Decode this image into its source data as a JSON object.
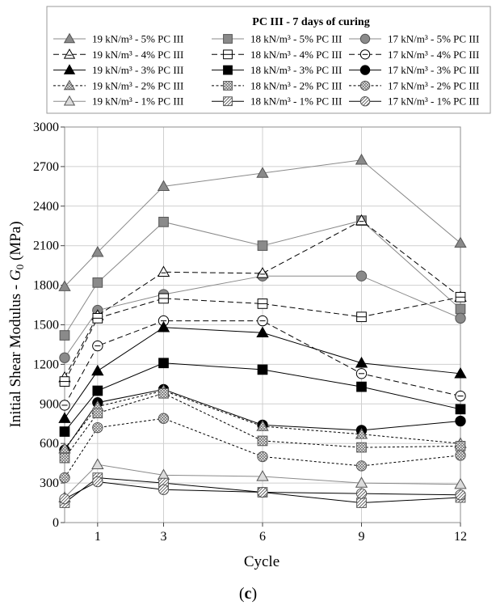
{
  "chart_data": {
    "type": "line",
    "title": "PC III - 7 days of curing",
    "xlabel": "Cycle",
    "ylabel_main": "Initial Shear Modulus - ",
    "ylabel_g": "G",
    "ylabel_sub": "0",
    "ylabel_unit": " (MPa)",
    "x": [
      0,
      1,
      3,
      6,
      9,
      12
    ],
    "xticks": [
      1,
      3,
      6,
      9,
      12
    ],
    "xtick_labels": [
      "1",
      "3",
      "6",
      "9",
      "12"
    ],
    "yticks": [
      0,
      300,
      600,
      900,
      1200,
      1500,
      1800,
      2100,
      2400,
      2700,
      3000
    ],
    "ytick_labels": [
      "0",
      "300",
      "600",
      "900",
      "1200",
      "1500",
      "1800",
      "2100",
      "2400",
      "2700",
      "3000"
    ],
    "xlim": [
      0,
      12
    ],
    "ylim": [
      0,
      3000
    ],
    "grid": true,
    "caption_open": "(",
    "caption_letter": "c",
    "caption_close": ")",
    "series": [
      {
        "name": "19 kN/m³ - 5% PC III",
        "marker": "triangle",
        "style": "gray",
        "dash": "solid",
        "values": [
          1790,
          2050,
          2550,
          2650,
          2750,
          2120
        ]
      },
      {
        "name": "18 kN/m³ - 5% PC III",
        "marker": "square",
        "style": "gray",
        "dash": "solid",
        "values": [
          1420,
          1820,
          2280,
          2100,
          2290,
          1620
        ]
      },
      {
        "name": "17 kN/m³ - 5% PC III",
        "marker": "circle",
        "style": "gray",
        "dash": "solid",
        "values": [
          1250,
          1610,
          1730,
          1870,
          1870,
          1550
        ]
      },
      {
        "name": "19 kN/m³ - 4% PC III",
        "marker": "triangle",
        "style": "white",
        "dash": "longdash",
        "values": [
          1100,
          1570,
          1900,
          1890,
          2290,
          1710
        ]
      },
      {
        "name": "18 kN/m³ - 4% PC III",
        "marker": "square",
        "style": "white",
        "dash": "longdash",
        "values": [
          1070,
          1550,
          1700,
          1660,
          1560,
          1710
        ]
      },
      {
        "name": "17 kN/m³ - 4% PC III",
        "marker": "circle",
        "style": "white",
        "dash": "longdash",
        "values": [
          890,
          1340,
          1530,
          1530,
          1130,
          960
        ]
      },
      {
        "name": "19 kN/m³ - 3% PC III",
        "marker": "triangle",
        "style": "black",
        "dash": "solid",
        "values": [
          790,
          1150,
          1480,
          1440,
          1210,
          1130
        ]
      },
      {
        "name": "18 kN/m³ - 3% PC III",
        "marker": "square",
        "style": "black",
        "dash": "solid",
        "values": [
          690,
          1000,
          1210,
          1160,
          1030,
          860
        ]
      },
      {
        "name": "17 kN/m³ - 3% PC III",
        "marker": "circle",
        "style": "black",
        "dash": "solid",
        "values": [
          550,
          910,
          1010,
          740,
          700,
          770
        ]
      },
      {
        "name": "19 kN/m³ - 2% PC III",
        "marker": "triangle",
        "style": "hatch",
        "dash": "shortdash",
        "values": [
          560,
          880,
          1000,
          730,
          670,
          600
        ]
      },
      {
        "name": "18 kN/m³ - 2% PC III",
        "marker": "square",
        "style": "hatch",
        "dash": "shortdash",
        "values": [
          490,
          830,
          980,
          620,
          570,
          580
        ]
      },
      {
        "name": "17 kN/m³ - 2% PC III",
        "marker": "circle",
        "style": "hatch",
        "dash": "shortdash",
        "values": [
          340,
          720,
          790,
          500,
          430,
          510
        ]
      },
      {
        "name": "19 kN/m³ - 1% PC III",
        "marker": "triangle",
        "style": "lightgray",
        "dash": "solid",
        "values": [
          190,
          440,
          360,
          350,
          300,
          290
        ]
      },
      {
        "name": "18 kN/m³ - 1% PC III",
        "marker": "square",
        "style": "diag",
        "dash": "solid",
        "values": [
          150,
          340,
          300,
          230,
          150,
          190
        ]
      },
      {
        "name": "17 kN/m³ - 1% PC III",
        "marker": "circle",
        "style": "diag",
        "dash": "solid",
        "values": [
          180,
          310,
          250,
          230,
          220,
          210
        ]
      }
    ]
  }
}
